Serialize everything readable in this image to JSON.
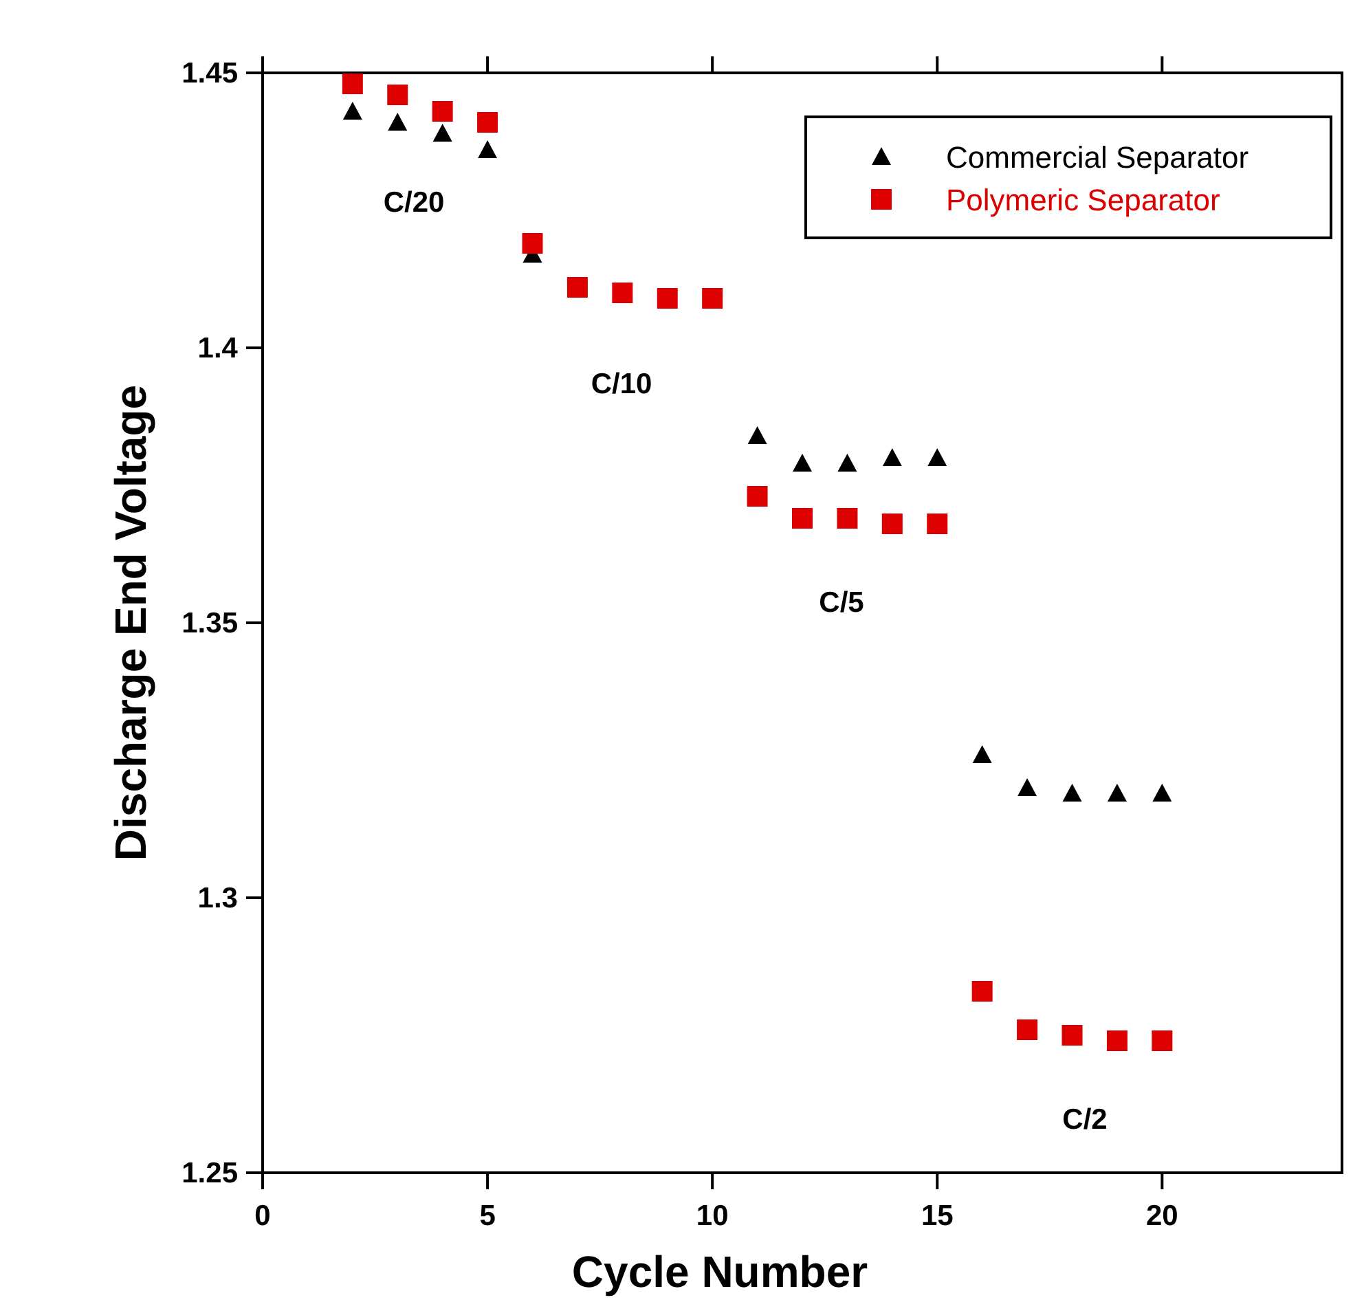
{
  "chart_data": {
    "type": "scatter",
    "xlabel": "Cycle Number",
    "ylabel": "Discharge End Voltage",
    "x": [
      2,
      3,
      4,
      5,
      6,
      7,
      8,
      9,
      10,
      11,
      12,
      13,
      14,
      15,
      16,
      17,
      18,
      19,
      20
    ],
    "series": [
      {
        "name": "Commercial Separator",
        "color": "#000000",
        "marker": "triangle",
        "values": [
          1.443,
          1.441,
          1.439,
          1.436,
          1.417,
          null,
          null,
          null,
          null,
          1.384,
          1.379,
          1.379,
          1.38,
          1.38,
          1.326,
          1.32,
          1.319,
          1.319,
          1.319
        ]
      },
      {
        "name": "Polymeric Separator",
        "color": "#dd0000",
        "marker": "square",
        "values": [
          1.448,
          1.446,
          1.443,
          1.441,
          1.419,
          1.411,
          1.41,
          1.409,
          1.409,
          1.373,
          1.369,
          1.369,
          1.368,
          1.368,
          1.283,
          1.276,
          1.275,
          1.274,
          1.274
        ]
      }
    ],
    "xlim": [
      0,
      24
    ],
    "xticks": [
      0,
      5,
      10,
      15,
      20
    ],
    "ylim": [
      1.25,
      1.45
    ],
    "yticks": [
      1.25,
      1.3,
      1.35,
      1.4,
      1.45
    ],
    "annotations": [
      "C/20",
      "C/10",
      "C/5",
      "C/2"
    ],
    "legend": "top right",
    "grid": false
  }
}
